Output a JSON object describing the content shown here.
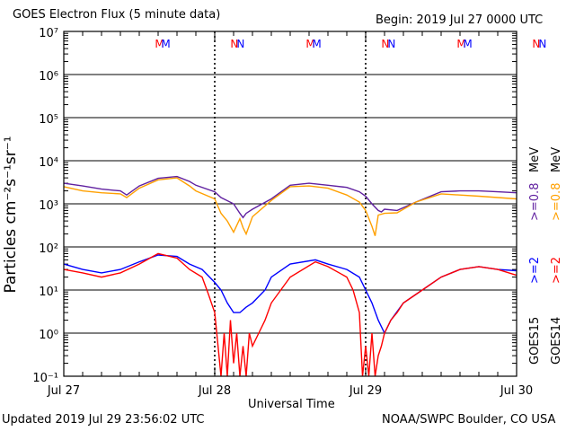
{
  "header": {
    "title": "GOES Electron Flux (5 minute data)",
    "begin": "Begin: 2019 Jul 27 0000 UTC"
  },
  "footer": {
    "updated": "Updated 2019 Jul 29 23:56:02 UTC",
    "credit": "NOAA/SWPC Boulder, CO USA"
  },
  "axes": {
    "xlabel": "Universal Time",
    "ylabel": "Particles cm⁻²s⁻¹sr⁻¹",
    "x_ticks": [
      "Jul 27",
      "Jul 28",
      "Jul 29",
      "Jul 30"
    ],
    "y_ticks": [
      "10⁻¹",
      "10⁰",
      "10¹",
      "10²",
      "10³",
      "10⁴",
      "10⁵",
      "10⁶",
      "10⁷"
    ]
  },
  "legend": {
    "goes15_label": "GOES15",
    "goes14_label": "GOES14",
    "goes15_ge2": ">=2",
    "goes14_ge2": ">=2",
    "goes15_ge08": ">=0.8",
    "goes14_ge08": ">=0.8",
    "unit": "MeV",
    "unit2": "MeV"
  },
  "colors": {
    "goes15_high": "#6020a0",
    "goes14_high": "#ffa000",
    "goes15_low": "#0000ff",
    "goes14_low": "#ff0000",
    "threshold": "#000000"
  },
  "markers": {
    "labels": [
      "M",
      "M",
      "N",
      "N",
      "M",
      "M",
      "N",
      "N",
      "M",
      "M",
      "N",
      "N"
    ],
    "colors": [
      "#ff0000",
      "#0000ff",
      "#ff0000",
      "#0000ff",
      "#ff0000",
      "#0000ff",
      "#ff0000",
      "#0000ff",
      "#ff0000",
      "#0000ff",
      "#ff0000",
      "#0000ff"
    ],
    "times_hours": [
      15.2,
      16.2,
      27.2,
      28.2,
      39.2,
      40.2,
      51.2,
      52.2,
      63.2,
      64.2,
      75.2,
      76.2
    ]
  },
  "chart_data": {
    "type": "line",
    "title": "GOES Electron Flux (5 minute data)",
    "xlabel": "Universal Time",
    "ylabel": "Particles cm⁻²s⁻¹sr⁻¹",
    "x_range_hours": [
      0,
      72
    ],
    "ylim": [
      0.1,
      10000000
    ],
    "y_scale": "log",
    "threshold": 1000,
    "grid": true,
    "series": [
      {
        "name": "GOES15 >=0.8 MeV",
        "color": "#6020a0",
        "x": [
          0,
          3,
          6,
          9,
          10,
          12,
          15,
          18,
          20,
          21,
          24,
          25,
          27,
          28,
          28.5,
          29,
          30,
          33,
          36,
          39,
          42,
          45,
          47,
          48,
          49,
          50,
          50.5,
          51,
          53,
          56,
          60,
          63,
          66,
          69,
          72
        ],
        "y": [
          3000,
          2600,
          2200,
          2000,
          1600,
          2600,
          3900,
          4300,
          3300,
          2700,
          1900,
          1400,
          1000,
          600,
          480,
          600,
          750,
          1300,
          2700,
          3000,
          2700,
          2400,
          1900,
          1500,
          1000,
          700,
          650,
          750,
          700,
          1100,
          1900,
          2000,
          2000,
          1900,
          1800
        ]
      },
      {
        "name": "GOES14 >=0.8 MeV",
        "color": "#ffa000",
        "x": [
          0,
          3,
          6,
          9,
          10,
          12,
          15,
          18,
          20,
          21,
          24,
          25,
          26,
          27,
          28,
          28.5,
          29,
          30,
          33,
          36,
          39,
          42,
          45,
          47,
          48,
          49,
          49.5,
          50,
          51,
          53,
          56,
          60,
          63,
          66,
          69,
          72
        ],
        "y": [
          2500,
          2000,
          1800,
          1700,
          1400,
          2300,
          3600,
          4000,
          2600,
          2000,
          1300,
          600,
          400,
          220,
          450,
          280,
          200,
          500,
          1200,
          2500,
          2600,
          2300,
          1600,
          1100,
          700,
          300,
          180,
          550,
          600,
          620,
          1100,
          1700,
          1600,
          1500,
          1400,
          1300
        ]
      },
      {
        "name": "GOES15 >=2 MeV",
        "color": "#0000ff",
        "x": [
          0,
          3,
          6,
          9,
          12,
          15,
          18,
          20,
          22,
          24,
          25,
          26,
          27,
          28,
          29,
          30,
          32,
          33,
          36,
          40,
          42,
          45,
          47,
          48,
          49,
          50,
          51,
          52,
          54,
          57,
          60,
          63,
          66,
          69,
          72
        ],
        "y": [
          40,
          30,
          25,
          30,
          45,
          65,
          60,
          40,
          30,
          15,
          10,
          5,
          3,
          3,
          4,
          5,
          10,
          20,
          40,
          50,
          40,
          30,
          20,
          10,
          5,
          2,
          1,
          2,
          5,
          10,
          20,
          30,
          35,
          30,
          28
        ]
      },
      {
        "name": "GOES14 >=2 MeV",
        "color": "#ff0000",
        "x": [
          0,
          3,
          6,
          9,
          12,
          15,
          18,
          20,
          22,
          23,
          24,
          25,
          25.5,
          26,
          26.5,
          27,
          27.5,
          28,
          28.5,
          29,
          29.5,
          30,
          31,
          32,
          33,
          36,
          40,
          42,
          45,
          46,
          47,
          47.5,
          48,
          48.5,
          49,
          49.5,
          50,
          50.5,
          51,
          52,
          53,
          54,
          57,
          60,
          63,
          66,
          69,
          72
        ],
        "y": [
          30,
          25,
          20,
          25,
          40,
          70,
          55,
          30,
          20,
          8,
          3,
          0.1,
          1,
          0.1,
          2,
          0.2,
          1,
          0.1,
          0.5,
          0.1,
          1,
          0.5,
          1,
          2,
          5,
          20,
          45,
          35,
          20,
          10,
          3,
          0.1,
          0.5,
          0.1,
          1,
          0.1,
          0.3,
          0.5,
          1,
          2,
          3,
          5,
          10,
          20,
          30,
          35,
          30,
          22
        ]
      }
    ]
  }
}
